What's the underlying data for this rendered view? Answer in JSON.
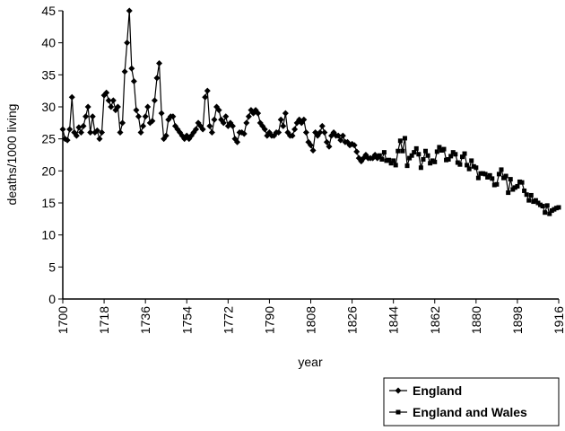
{
  "chart_data": {
    "type": "line",
    "x_label": "year",
    "y_label": "deaths/1000 living",
    "xlim": [
      1700,
      1916
    ],
    "xticks": [
      1700,
      1718,
      1736,
      1754,
      1772,
      1790,
      1808,
      1826,
      1844,
      1862,
      1880,
      1898,
      1916
    ],
    "ylim": [
      0,
      45
    ],
    "yticks": [
      0,
      5,
      10,
      15,
      20,
      25,
      30,
      35,
      40,
      45
    ],
    "grid": false,
    "legend": "outside-bottom-right",
    "series": [
      {
        "name": "England",
        "color": "#000000",
        "marker": "diamond",
        "x": [
          1700,
          1701,
          1702,
          1703,
          1704,
          1705,
          1706,
          1707,
          1708,
          1709,
          1710,
          1711,
          1712,
          1713,
          1714,
          1715,
          1716,
          1717,
          1718,
          1719,
          1720,
          1721,
          1722,
          1723,
          1724,
          1725,
          1726,
          1727,
          1728,
          1729,
          1730,
          1731,
          1732,
          1733,
          1734,
          1735,
          1736,
          1737,
          1738,
          1739,
          1740,
          1741,
          1742,
          1743,
          1744,
          1745,
          1746,
          1747,
          1748,
          1749,
          1750,
          1751,
          1752,
          1753,
          1754,
          1755,
          1756,
          1757,
          1758,
          1759,
          1760,
          1761,
          1762,
          1763,
          1764,
          1765,
          1766,
          1767,
          1768,
          1769,
          1770,
          1771,
          1772,
          1773,
          1774,
          1775,
          1776,
          1777,
          1778,
          1779,
          1780,
          1781,
          1782,
          1783,
          1784,
          1785,
          1786,
          1787,
          1788,
          1789,
          1790,
          1791,
          1792,
          1793,
          1794,
          1795,
          1796,
          1797,
          1798,
          1799,
          1800,
          1801,
          1802,
          1803,
          1804,
          1805,
          1806,
          1807,
          1808,
          1809,
          1810,
          1811,
          1812,
          1813,
          1814,
          1815,
          1816,
          1817,
          1818,
          1819,
          1820,
          1821,
          1822,
          1823,
          1824,
          1825,
          1826,
          1827,
          1828,
          1829,
          1830,
          1831,
          1832,
          1833,
          1834,
          1835,
          1836,
          1837
        ],
        "values": [
          26.5,
          25,
          24.8,
          26.5,
          31.5,
          26,
          25.5,
          26.8,
          26,
          27,
          28.5,
          30,
          26,
          28.5,
          26,
          26.3,
          25,
          26,
          31.8,
          32.2,
          31,
          30,
          31,
          29.5,
          30,
          26,
          27.5,
          35.5,
          40,
          45,
          36,
          34,
          29.5,
          28.5,
          26,
          27,
          28.5,
          30,
          27.5,
          27.8,
          31,
          34.5,
          36.8,
          29,
          25,
          25.5,
          28,
          28.5,
          28.5,
          27,
          26.5,
          26,
          25.5,
          25,
          25.5,
          25,
          25.5,
          26,
          26.5,
          27.5,
          27,
          26.5,
          31.5,
          32.5,
          27,
          26,
          28,
          30,
          29.5,
          28,
          27.5,
          28.5,
          27,
          27.5,
          27,
          25,
          24.5,
          26,
          26,
          25.8,
          27.5,
          28.5,
          29.5,
          29,
          29.5,
          29,
          27.5,
          27,
          26.5,
          25.5,
          26,
          25.5,
          25.5,
          26,
          26,
          28,
          27,
          29,
          26,
          25.5,
          25.5,
          26.5,
          27.5,
          28,
          27.5,
          28,
          26,
          24.5,
          24,
          23.2,
          26,
          25.5,
          26,
          27,
          26,
          24.5,
          23.8,
          25.5,
          26,
          25.5,
          25.5,
          24.8,
          25.5,
          24.5,
          24.5,
          24,
          24.2,
          24,
          23,
          22,
          21.5,
          22,
          22.5,
          22,
          22,
          22,
          22.5,
          22
        ]
      },
      {
        "name": "England and Wales",
        "color": "#000000",
        "marker": "square",
        "x": [
          1838,
          1839,
          1840,
          1841,
          1842,
          1843,
          1844,
          1845,
          1846,
          1847,
          1848,
          1849,
          1850,
          1851,
          1852,
          1853,
          1854,
          1855,
          1856,
          1857,
          1858,
          1859,
          1860,
          1861,
          1862,
          1863,
          1864,
          1865,
          1866,
          1867,
          1868,
          1869,
          1870,
          1871,
          1872,
          1873,
          1874,
          1875,
          1876,
          1877,
          1878,
          1879,
          1880,
          1881,
          1882,
          1883,
          1884,
          1885,
          1886,
          1887,
          1888,
          1889,
          1890,
          1891,
          1892,
          1893,
          1894,
          1895,
          1896,
          1897,
          1898,
          1899,
          1900,
          1901,
          1902,
          1903,
          1904,
          1905,
          1906,
          1907,
          1908,
          1909,
          1910,
          1911,
          1912,
          1913,
          1914,
          1915,
          1916
        ],
        "values": [
          22.4,
          21.8,
          22.9,
          21.6,
          21.7,
          21.2,
          21.6,
          20.9,
          23.1,
          24.7,
          23.1,
          25.1,
          20.8,
          22.0,
          22.4,
          22.9,
          23.5,
          22.6,
          20.5,
          21.8,
          23.1,
          22.4,
          21.2,
          21.6,
          21.4,
          23.0,
          23.7,
          23.2,
          23.4,
          21.7,
          21.8,
          22.3,
          22.9,
          22.6,
          21.3,
          21.0,
          22.2,
          22.7,
          20.9,
          20.3,
          21.6,
          20.7,
          20.5,
          18.9,
          19.6,
          19.6,
          19.5,
          19.0,
          19.3,
          18.8,
          17.8,
          17.9,
          19.5,
          20.2,
          18.9,
          19.2,
          16.6,
          18.7,
          17.1,
          17.4,
          17.6,
          18.3,
          18.2,
          16.9,
          16.3,
          15.4,
          16.2,
          15.2,
          15.4,
          15.0,
          14.7,
          14.5,
          13.5,
          14.6,
          13.3,
          13.8,
          14.0,
          14.2,
          14.3
        ]
      }
    ]
  }
}
